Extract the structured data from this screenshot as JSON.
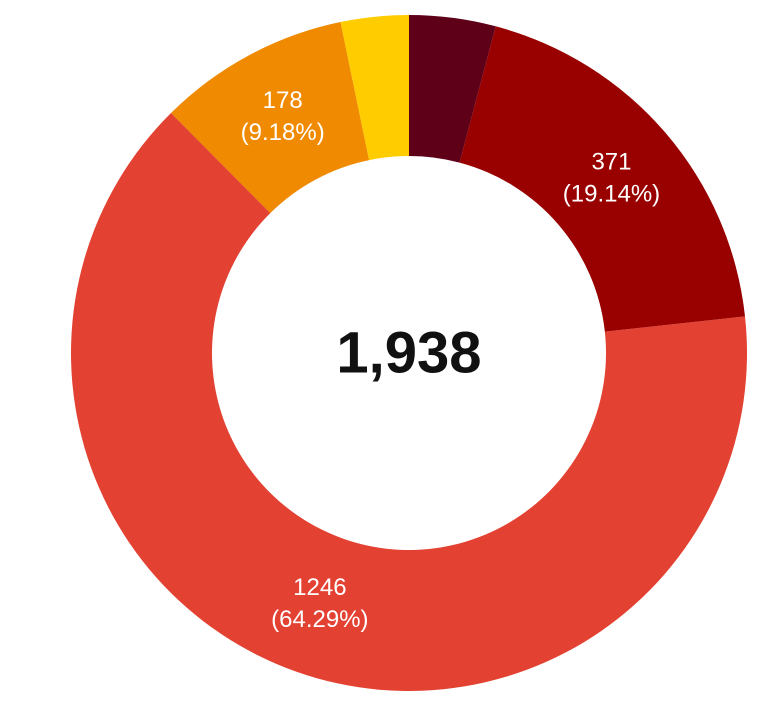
{
  "chart_data": {
    "type": "donut",
    "values": [
      80,
      371,
      1246,
      178,
      63
    ],
    "percent_labels": [
      null,
      "(19.14%)",
      "(64.29%)",
      "(9.18%)",
      null
    ],
    "colors": [
      "#5e0018",
      "#990000",
      "#e34132",
      "#f08a00",
      "#ffcc00"
    ],
    "center_label": "1,938"
  }
}
